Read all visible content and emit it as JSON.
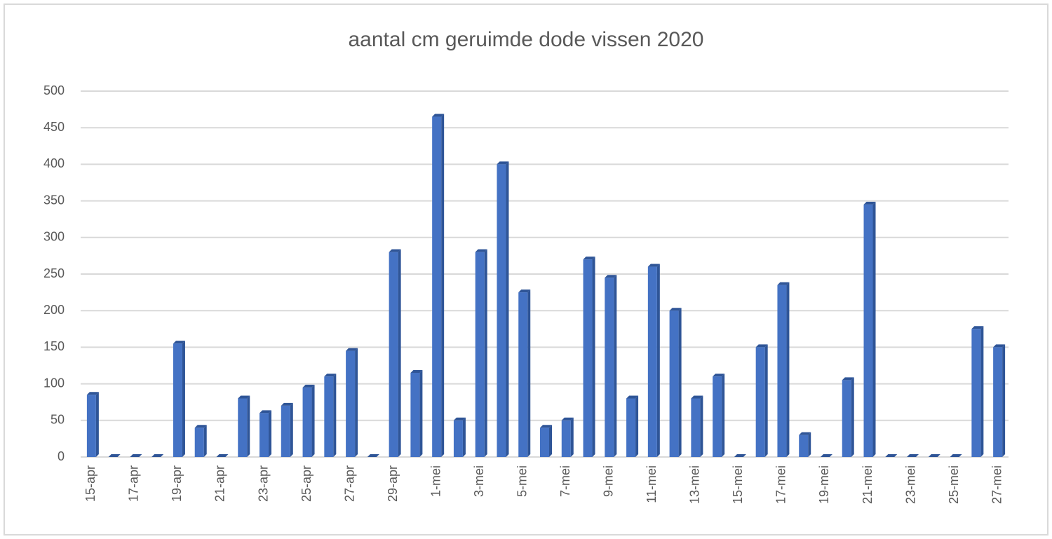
{
  "chart_data": {
    "type": "bar",
    "title": "aantal cm geruimde dode vissen 2020",
    "categories": [
      "15-apr",
      null,
      "17-apr",
      null,
      "19-apr",
      null,
      "21-apr",
      null,
      "23-apr",
      null,
      "25-apr",
      null,
      "27-apr",
      null,
      "29-apr",
      null,
      "1-mei",
      null,
      "3-mei",
      null,
      "5-mei",
      null,
      "7-mei",
      null,
      "9-mei",
      null,
      "11-mei",
      null,
      "13-mei",
      null,
      "15-mei",
      null,
      "17-mei",
      null,
      "19-mei",
      null,
      "21-mei",
      null,
      "23-mei",
      null,
      "25-mei",
      null,
      "27-mei"
    ],
    "values": [
      85,
      0,
      0,
      0,
      155,
      40,
      0,
      80,
      60,
      70,
      95,
      110,
      145,
      0,
      280,
      115,
      465,
      50,
      280,
      400,
      225,
      40,
      50,
      270,
      245,
      80,
      260,
      200,
      80,
      110,
      0,
      150,
      235,
      30,
      0,
      105,
      345,
      0,
      0,
      0,
      0,
      175,
      150
    ],
    "color": "#4472c4",
    "ylim": [
      0,
      500
    ],
    "yticks": [
      0,
      50,
      100,
      150,
      200,
      250,
      300,
      350,
      400,
      450,
      500
    ],
    "grid": true
  }
}
